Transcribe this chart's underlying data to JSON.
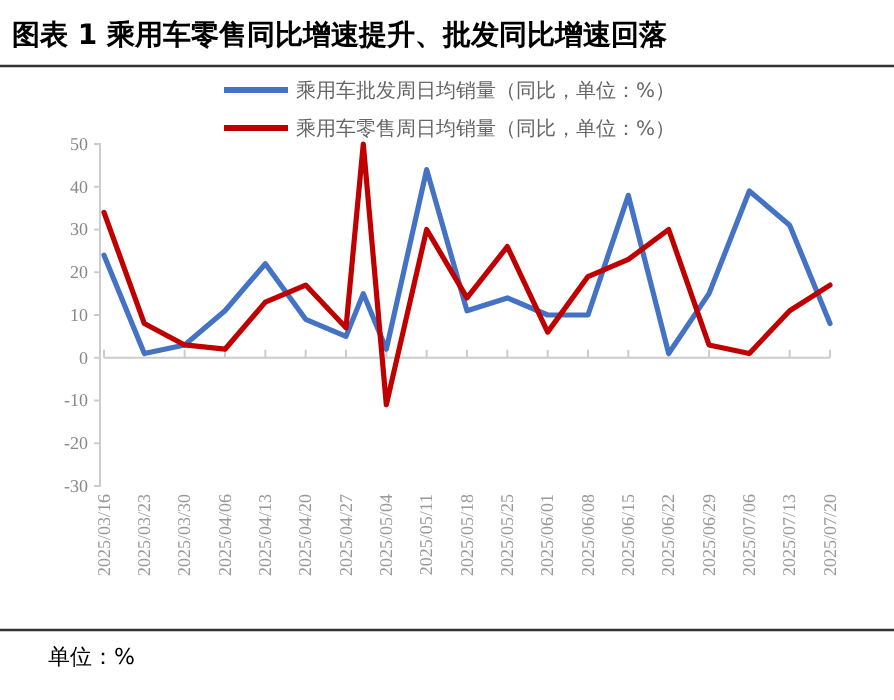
{
  "chart_data": {
    "type": "line",
    "title": "图表 1 乘用车零售同比增速提升、批发同比增速回落",
    "x": [
      "2025-03-16",
      "2025-03-23",
      "2025-03-30",
      "2025-04-06",
      "2025-04-13",
      "2025-04-20",
      "2025-04-27",
      "2025-04-30",
      "2025-05-04",
      "2025-05-11",
      "2025-05-18",
      "2025-05-25",
      "2025-06-01",
      "2025-06-08",
      "2025-06-15",
      "2025-06-22",
      "2025-06-29",
      "2025-07-06",
      "2025-07-13",
      "2025-07-20"
    ],
    "series": [
      {
        "name": "乘用车批发周日均销量（同比，单位：%）",
        "color": "#4472c4",
        "values": [
          24,
          1,
          3,
          11,
          22,
          9,
          5,
          15,
          2,
          44,
          11,
          14,
          10,
          10,
          38,
          1,
          15,
          39,
          31,
          8
        ]
      },
      {
        "name": "乘用车零售周日均销量（同比，单位：%）",
        "color": "#c00000",
        "values": [
          34,
          8,
          3,
          2,
          13,
          17,
          7,
          50,
          -11,
          30,
          14,
          26,
          6,
          19,
          23,
          30,
          3,
          1,
          11,
          17
        ]
      }
    ],
    "xlim": [
      "2025-03-16",
      "2025-07-20"
    ],
    "xticks": [
      {
        "value": "2025-03-16",
        "label": "2025/03/16"
      },
      {
        "value": "2025-03-23",
        "label": "2025/03/23"
      },
      {
        "value": "2025-03-30",
        "label": "2025/03/30"
      },
      {
        "value": "2025-04-06",
        "label": "2025/04/06"
      },
      {
        "value": "2025-04-13",
        "label": "2025/04/13"
      },
      {
        "value": "2025-04-20",
        "label": "2025/04/20"
      },
      {
        "value": "2025-04-27",
        "label": "2025/04/27"
      },
      {
        "value": "2025-05-04",
        "label": "2025/05/04"
      },
      {
        "value": "2025-05-11",
        "label": "2025/05/11"
      },
      {
        "value": "2025-05-18",
        "label": "2025/05/18"
      },
      {
        "value": "2025-05-25",
        "label": "2025/05/25"
      },
      {
        "value": "2025-06-01",
        "label": "2025/06/01"
      },
      {
        "value": "2025-06-08",
        "label": "2025/06/08"
      },
      {
        "value": "2025-06-15",
        "label": "2025/06/15"
      },
      {
        "value": "2025-06-22",
        "label": "2025/06/22"
      },
      {
        "value": "2025-06-29",
        "label": "2025/06/29"
      },
      {
        "value": "2025-07-06",
        "label": "2025/07/06"
      },
      {
        "value": "2025-07-13",
        "label": "2025/07/13"
      },
      {
        "value": "2025-07-20",
        "label": "2025/07/20"
      }
    ],
    "ylim": [
      -30,
      50
    ],
    "yticks": [
      -30,
      -20,
      -10,
      0,
      10,
      20,
      30,
      40,
      50
    ],
    "legend": "top",
    "marker": "none",
    "line_style": "solid",
    "annotations": [
      "单位：%"
    ]
  }
}
